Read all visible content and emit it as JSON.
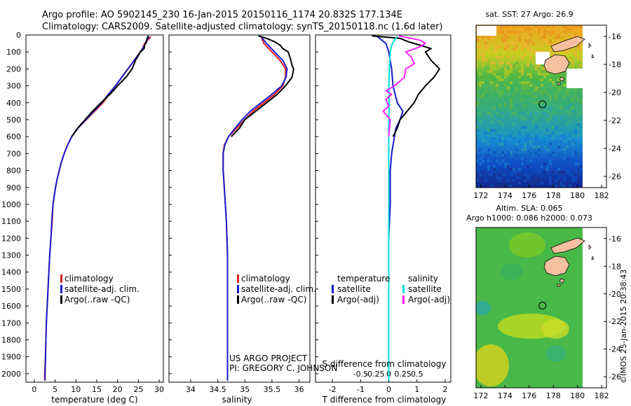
{
  "header": {
    "line1": "Argo profile: AO 5902145_230 16-Jan-2015 20150116_1174 20.832S 177.134E",
    "line2": "Climatology: CARS2009. Satellite-adjusted climatology: synTS_20150118.nc (1.6d later)"
  },
  "side_stamp": "©IMOS 25-Jan-2015 20:38:43",
  "project_credit": [
    "US ARGO PROJECT",
    "PI: GREGORY C. JOHNSON"
  ],
  "colors": {
    "clim": "#e02020",
    "sat": "#1a1acc",
    "argo": "#000000",
    "sal_sat": "#00e0e0",
    "sal_argo": "#ff22ff"
  },
  "depth_ticks": [
    "0",
    "100",
    "200",
    "300",
    "400",
    "500",
    "600",
    "700",
    "800",
    "900",
    "1000",
    "1100",
    "1200",
    "1300",
    "1400",
    "1500",
    "1600",
    "1700",
    "1800",
    "1900",
    "2000"
  ],
  "chart_data": [
    {
      "type": "line",
      "name": "temperature-profile",
      "xlabel": "temperature (deg C)",
      "xlim": [
        -2,
        31
      ],
      "ylim": [
        0,
        2050
      ],
      "xticks": [
        "0",
        "5",
        "10",
        "15",
        "20",
        "25",
        "30"
      ],
      "legend": [
        "climatology",
        "satellite-adj. clim.",
        "Argo(..raw -QC)"
      ],
      "series": [
        {
          "name": "climatology",
          "color": "#e02020",
          "points": [
            [
              28,
              10
            ],
            [
              27.2,
              30
            ],
            [
              26.5,
              50
            ],
            [
              26,
              80
            ],
            [
              24,
              150
            ],
            [
              22.5,
              200
            ],
            [
              21,
              250
            ],
            [
              19.5,
              300
            ],
            [
              18,
              350
            ],
            [
              16.5,
              400
            ],
            [
              14.5,
              450
            ],
            [
              12.5,
              500
            ],
            [
              10.5,
              550
            ],
            [
              9,
              600
            ],
            [
              8,
              650
            ],
            [
              7.2,
              700
            ],
            [
              6.5,
              750
            ],
            [
              6,
              800
            ],
            [
              5.5,
              850
            ],
            [
              5.1,
              900
            ],
            [
              4.8,
              950
            ],
            [
              4.5,
              1000
            ],
            [
              4.3,
              1100
            ],
            [
              4,
              1200
            ],
            [
              3.7,
              1300
            ],
            [
              3.5,
              1400
            ],
            [
              3.3,
              1500
            ],
            [
              3.1,
              1600
            ],
            [
              2.9,
              1700
            ],
            [
              2.8,
              1800
            ],
            [
              2.7,
              1900
            ],
            [
              2.5,
              2000
            ],
            [
              2.5,
              2040
            ]
          ]
        },
        {
          "name": "satellite-adj. clim.",
          "color": "#1a1acc",
          "points": [
            [
              27.6,
              10
            ],
            [
              27,
              30
            ],
            [
              26.5,
              60
            ],
            [
              25.5,
              100
            ],
            [
              24,
              150
            ],
            [
              22.5,
              200
            ],
            [
              21,
              250
            ],
            [
              19.5,
              300
            ],
            [
              17.8,
              350
            ],
            [
              16.2,
              400
            ],
            [
              14.3,
              450
            ],
            [
              12.4,
              500
            ],
            [
              10.5,
              550
            ],
            [
              9,
              600
            ],
            [
              8,
              650
            ],
            [
              7.2,
              700
            ],
            [
              6.5,
              750
            ],
            [
              6,
              800
            ],
            [
              5.5,
              850
            ],
            [
              5.1,
              900
            ],
            [
              4.8,
              950
            ],
            [
              4.5,
              1000
            ],
            [
              4.2,
              1100
            ],
            [
              4,
              1200
            ],
            [
              3.7,
              1300
            ],
            [
              3.5,
              1400
            ],
            [
              3.3,
              1500
            ],
            [
              3.1,
              1600
            ],
            [
              2.9,
              1700
            ],
            [
              2.8,
              1800
            ],
            [
              2.7,
              1900
            ],
            [
              2.6,
              2000
            ],
            [
              2.6,
              2040
            ]
          ]
        },
        {
          "name": "Argo(..raw -QC)",
          "color": "#000000",
          "points": [
            [
              27.4,
              5
            ],
            [
              27.1,
              20
            ],
            [
              27,
              40
            ],
            [
              26.5,
              60
            ],
            [
              26.4,
              80
            ],
            [
              25.5,
              100
            ],
            [
              24.3,
              150
            ],
            [
              23.5,
              200
            ],
            [
              22,
              250
            ],
            [
              20,
              300
            ],
            [
              18.2,
              350
            ],
            [
              16,
              400
            ],
            [
              14,
              450
            ],
            [
              12.2,
              500
            ],
            [
              10.4,
              550
            ],
            [
              9,
              600
            ]
          ]
        }
      ]
    },
    {
      "type": "line",
      "name": "salinity-profile",
      "xlabel": "salinity",
      "xlim": [
        33.6,
        36.2
      ],
      "ylim": [
        0,
        2050
      ],
      "xticks": [
        "34",
        "34.5",
        "35",
        "35.5",
        "36"
      ],
      "legend": [
        "climatology",
        "satellite-adj. clim.",
        "Argo(..raw -QC)"
      ],
      "series": [
        {
          "name": "climatology",
          "color": "#e02020",
          "points": [
            [
              35.3,
              10
            ],
            [
              35.35,
              50
            ],
            [
              35.5,
              100
            ],
            [
              35.65,
              150
            ],
            [
              35.75,
              200
            ],
            [
              35.75,
              250
            ],
            [
              35.7,
              300
            ],
            [
              35.55,
              350
            ],
            [
              35.35,
              400
            ],
            [
              35.15,
              450
            ],
            [
              35,
              500
            ],
            [
              34.85,
              550
            ],
            [
              34.7,
              600
            ],
            [
              34.62,
              650
            ],
            [
              34.6,
              700
            ],
            [
              34.6,
              750
            ],
            [
              34.6,
              800
            ],
            [
              34.61,
              850
            ],
            [
              34.62,
              900
            ],
            [
              34.64,
              1000
            ],
            [
              34.66,
              1100
            ],
            [
              34.67,
              1200
            ],
            [
              34.68,
              1300
            ],
            [
              34.68,
              1400
            ],
            [
              34.68,
              1500
            ],
            [
              34.68,
              1600
            ],
            [
              34.68,
              1700
            ],
            [
              34.68,
              1800
            ],
            [
              34.68,
              1900
            ],
            [
              34.68,
              2000
            ],
            [
              34.68,
              2040
            ]
          ]
        },
        {
          "name": "satellite-adj. clim.",
          "color": "#1a1acc",
          "points": [
            [
              35.3,
              10
            ],
            [
              35.4,
              50
            ],
            [
              35.55,
              100
            ],
            [
              35.7,
              150
            ],
            [
              35.78,
              200
            ],
            [
              35.76,
              250
            ],
            [
              35.68,
              300
            ],
            [
              35.5,
              350
            ],
            [
              35.3,
              400
            ],
            [
              35.1,
              450
            ],
            [
              34.95,
              500
            ],
            [
              34.82,
              550
            ],
            [
              34.7,
              600
            ],
            [
              34.63,
              650
            ],
            [
              34.6,
              700
            ],
            [
              34.6,
              750
            ],
            [
              34.6,
              800
            ],
            [
              34.61,
              850
            ],
            [
              34.62,
              900
            ],
            [
              34.64,
              1000
            ],
            [
              34.66,
              1100
            ],
            [
              34.67,
              1200
            ],
            [
              34.68,
              1300
            ],
            [
              34.68,
              1400
            ],
            [
              34.68,
              1500
            ],
            [
              34.68,
              1600
            ],
            [
              34.68,
              1700
            ],
            [
              34.68,
              1800
            ],
            [
              34.68,
              1900
            ],
            [
              34.68,
              2000
            ],
            [
              34.68,
              2040
            ]
          ]
        },
        {
          "name": "Argo(..raw -QC)",
          "color": "#000000",
          "points": [
            [
              35.25,
              5
            ],
            [
              35.4,
              20
            ],
            [
              35.55,
              40
            ],
            [
              35.65,
              60
            ],
            [
              35.7,
              80
            ],
            [
              35.8,
              100
            ],
            [
              35.85,
              150
            ],
            [
              35.87,
              180
            ],
            [
              35.9,
              200
            ],
            [
              35.87,
              250
            ],
            [
              35.75,
              300
            ],
            [
              35.6,
              350
            ],
            [
              35.4,
              400
            ],
            [
              35.2,
              450
            ],
            [
              35,
              500
            ],
            [
              34.9,
              550
            ],
            [
              34.75,
              600
            ]
          ]
        }
      ]
    },
    {
      "type": "line",
      "name": "difference-profile",
      "xlabel": "T difference from climatology",
      "xlabel_top": "S difference from climatology",
      "xlim": [
        -2.6,
        2.2
      ],
      "ylim": [
        0,
        2050
      ],
      "xticks": [
        "-2",
        "-1",
        "0",
        "1",
        "2"
      ],
      "sticks": [
        "-0.5",
        "-0.25",
        "0",
        "0.25",
        "0.5"
      ],
      "legend_t": {
        "title": "temperature",
        "items": [
          "satellite",
          "Argo(-adj)"
        ]
      },
      "legend_s": {
        "title": "salinity",
        "items": [
          "satellite",
          "Argo(-adj)"
        ]
      },
      "series": [
        {
          "name": "T satellite",
          "color": "#1a1acc",
          "points": [
            [
              -0.4,
              10
            ],
            [
              -0.1,
              50
            ],
            [
              0,
              100
            ],
            [
              0.1,
              200
            ],
            [
              0.15,
              300
            ],
            [
              0.3,
              400
            ],
            [
              0.5,
              450
            ],
            [
              0.4,
              500
            ],
            [
              0.25,
              550
            ],
            [
              0.2,
              600
            ],
            [
              0.1,
              700
            ],
            [
              0.05,
              800
            ],
            [
              0.05,
              1000
            ],
            [
              0,
              1200
            ],
            [
              0,
              2040
            ]
          ]
        },
        {
          "name": "T Argo(-adj)",
          "color": "#000000",
          "points": [
            [
              -0.6,
              5
            ],
            [
              0.4,
              20
            ],
            [
              0.7,
              40
            ],
            [
              1.1,
              60
            ],
            [
              1.5,
              80
            ],
            [
              1.3,
              100
            ],
            [
              1.5,
              150
            ],
            [
              1.8,
              200
            ],
            [
              1.6,
              250
            ],
            [
              1.3,
              300
            ],
            [
              1.05,
              350
            ],
            [
              0.9,
              400
            ],
            [
              0.65,
              450
            ],
            [
              0.4,
              500
            ],
            [
              0.3,
              550
            ],
            [
              0.15,
              600
            ]
          ]
        },
        {
          "name": "S satellite",
          "color": "#00e0e0",
          "points": [
            [
              0.3,
              10
            ],
            [
              0.2,
              30
            ],
            [
              0.1,
              60
            ],
            [
              0.05,
              100
            ],
            [
              0.02,
              200
            ],
            [
              0,
              300
            ],
            [
              0.02,
              400
            ],
            [
              0,
              500
            ],
            [
              0,
              600
            ],
            [
              0,
              800
            ],
            [
              0,
              1000
            ],
            [
              0,
              1500
            ],
            [
              0,
              2040
            ]
          ]
        },
        {
          "name": "S Argo(-adj)",
          "color": "#ff22ff",
          "points": [
            [
              0.35,
              5
            ],
            [
              1.1,
              30
            ],
            [
              1.3,
              50
            ],
            [
              1.1,
              70
            ],
            [
              0.6,
              100
            ],
            [
              0.8,
              130
            ],
            [
              0.9,
              170
            ],
            [
              0.6,
              200
            ],
            [
              0.55,
              250
            ],
            [
              0.2,
              300
            ],
            [
              -0.1,
              330
            ],
            [
              0.1,
              350
            ],
            [
              -0.1,
              380
            ],
            [
              0,
              420
            ],
            [
              -0.2,
              450
            ],
            [
              0.05,
              500
            ],
            [
              0,
              600
            ]
          ]
        }
      ]
    }
  ],
  "maps": [
    {
      "name": "sst-map",
      "title": [
        "sat. SST: 27 Argo: 26.9"
      ],
      "xticks": [
        "172",
        "174",
        "176",
        "178",
        "180",
        "182"
      ],
      "yticks": [
        "-16",
        "-18",
        "-20",
        "-22",
        "-24",
        "-26"
      ],
      "lon": [
        171.6,
        182.4
      ],
      "lat": [
        -26.8,
        -15.2
      ],
      "argo_position": [
        177.1,
        -20.85
      ]
    },
    {
      "name": "sla-map",
      "title": [
        "Altim. SLA: 0.065",
        "Argo h1000: 0.086 h2000: 0.073"
      ],
      "xticks": [
        "172",
        "174",
        "176",
        "178",
        "180",
        "182"
      ],
      "yticks": [
        "-16",
        "-18",
        "-20",
        "-22",
        "-24",
        "-26"
      ],
      "lon": [
        171.6,
        182.4
      ],
      "lat": [
        -26.8,
        -15.2
      ],
      "argo_position": [
        177.1,
        -20.85
      ]
    }
  ]
}
